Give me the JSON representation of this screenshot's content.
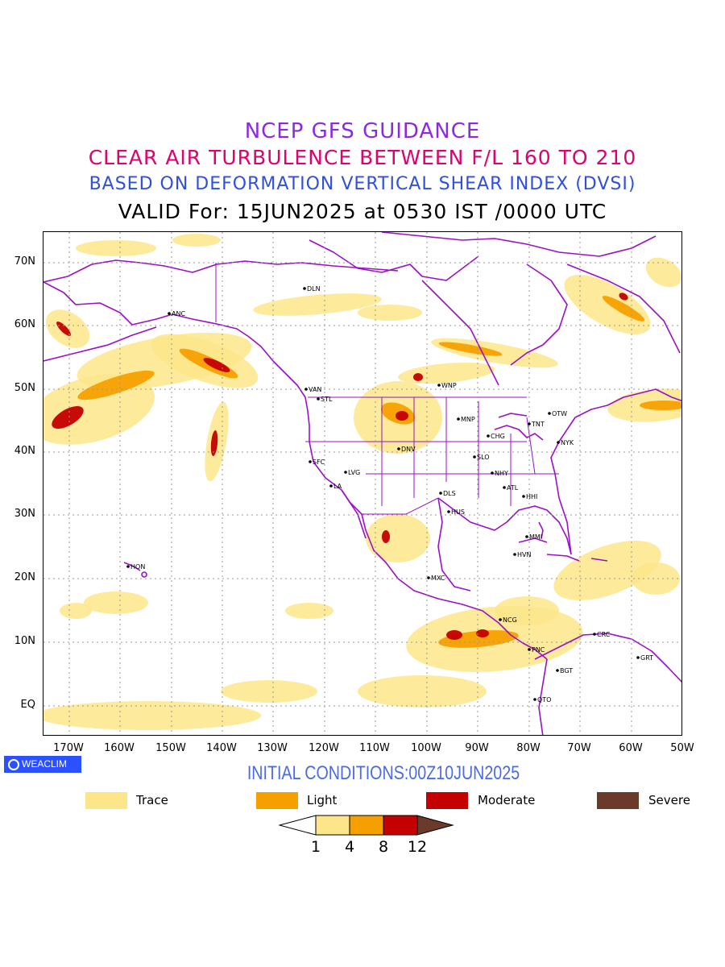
{
  "header": {
    "line1": "NCEP GFS GUIDANCE",
    "line2": "CLEAR AIR TURBULENCE BETWEEN F/L 160 TO 210",
    "line3": "BASED ON DEFORMATION VERTICAL SHEAR INDEX (DVSI)",
    "line4": "VALID For: 15JUN2025 at 0530 IST /0000 UTC"
  },
  "axes": {
    "lat_labels": [
      "70N",
      "60N",
      "50N",
      "40N",
      "30N",
      "20N",
      "10N",
      "EQ"
    ],
    "lon_labels": [
      "170W",
      "160W",
      "150W",
      "140W",
      "130W",
      "120W",
      "110W",
      "100W",
      "90W",
      "80W",
      "70W",
      "60W",
      "50W"
    ]
  },
  "stations": [
    {
      "name": "ANC"
    },
    {
      "name": "DLN"
    },
    {
      "name": "VAN"
    },
    {
      "name": "STL"
    },
    {
      "name": "WNP"
    },
    {
      "name": "MNP"
    },
    {
      "name": "TNT"
    },
    {
      "name": "OTW"
    },
    {
      "name": "CHG"
    },
    {
      "name": "NYK"
    },
    {
      "name": "DNV"
    },
    {
      "name": "SFC"
    },
    {
      "name": "SLO"
    },
    {
      "name": "LVG"
    },
    {
      "name": "LA"
    },
    {
      "name": "NHY"
    },
    {
      "name": "ATL"
    },
    {
      "name": "DLS"
    },
    {
      "name": "HHI"
    },
    {
      "name": "HUS"
    },
    {
      "name": "MMI"
    },
    {
      "name": "HVN"
    },
    {
      "name": "HON"
    },
    {
      "name": "MXC"
    },
    {
      "name": "NCG"
    },
    {
      "name": "CRC"
    },
    {
      "name": "PNC"
    },
    {
      "name": "GRT"
    },
    {
      "name": "BGT"
    },
    {
      "name": "QTO"
    }
  ],
  "badge": {
    "label": "WEACLIM"
  },
  "initial_conditions": "INITIAL CONDITIONS:00Z10JUN2025",
  "legend": [
    {
      "label": "Trace",
      "color": "#fde68a"
    },
    {
      "label": "Light",
      "color": "#f5a000"
    },
    {
      "label": "Moderate",
      "color": "#c40000"
    },
    {
      "label": "Severe",
      "color": "#6b3a2a"
    }
  ],
  "colorbar": {
    "levels": [
      "1",
      "4",
      "8",
      "12"
    ],
    "colors": [
      "#ffffff",
      "#fde68a",
      "#f5a000",
      "#c40000",
      "#6b3a2a"
    ]
  },
  "colors": {
    "border": "#9b10c8",
    "grid": "#999999"
  }
}
